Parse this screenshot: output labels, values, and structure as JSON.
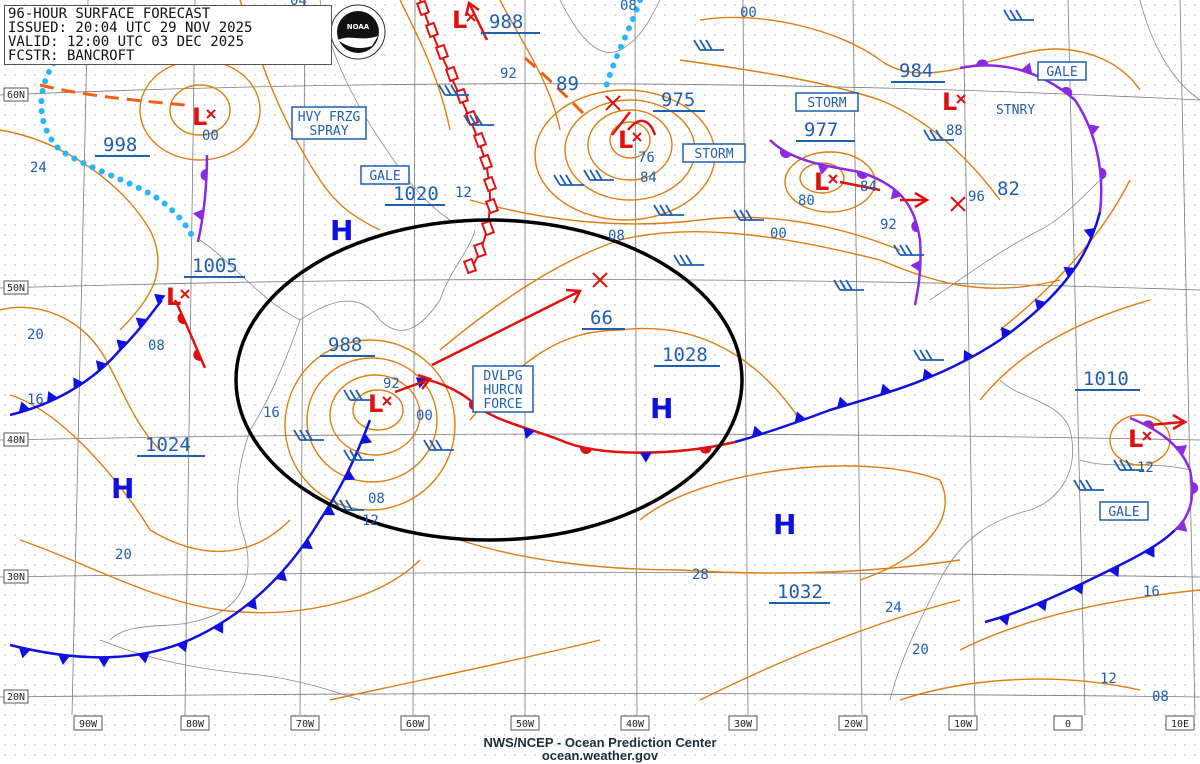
{
  "header": {
    "line1": "96-HOUR SURFACE FORECAST",
    "line2": "ISSUED: 20:04 UTC 29 NOV 2025",
    "line3": "VALID:  12:00 UTC 03 DEC 2025",
    "line4": "FCSTR: BANCROFT"
  },
  "logo_text": "NOAA",
  "credits": {
    "line1": "NWS/NCEP - Ocean Prediction Center",
    "line2": "ocean.weather.gov"
  },
  "longitude_labels": [
    "90W",
    "80W",
    "70W",
    "60W",
    "50W",
    "40W",
    "30W",
    "20W",
    "10W",
    "0",
    "10E"
  ],
  "latitude_labels": [
    "60N",
    "50N",
    "40N",
    "30N",
    "20N"
  ],
  "pressure_centers": [
    {
      "type": "H",
      "value": "1020"
    },
    {
      "type": "L",
      "value": "998"
    },
    {
      "type": "L",
      "value": "1005"
    },
    {
      "type": "L",
      "value": "988"
    },
    {
      "type": "X",
      "value": "66"
    },
    {
      "type": "H",
      "value": "1028"
    },
    {
      "type": "H",
      "value": "1032"
    },
    {
      "type": "H",
      "value": "1024"
    },
    {
      "type": "L",
      "value": "975"
    },
    {
      "type": "L",
      "value": "988"
    },
    {
      "type": "X",
      "value": "89"
    },
    {
      "type": "L",
      "value": "977"
    },
    {
      "type": "L",
      "value": "984"
    },
    {
      "type": "X",
      "value": "82"
    },
    {
      "type": "L",
      "value": "1010"
    }
  ],
  "warning_labels": [
    {
      "text": [
        "HVY FRZG",
        "SPRAY"
      ]
    },
    {
      "text": [
        "GALE"
      ]
    },
    {
      "text": [
        "STORM"
      ]
    },
    {
      "text": [
        "STORM"
      ]
    },
    {
      "text": [
        "GALE"
      ]
    },
    {
      "text": [
        "DVLPG",
        "HURCN",
        "FORCE"
      ]
    },
    {
      "text": [
        "GALE"
      ]
    }
  ],
  "front_labels": [
    "STNRY"
  ],
  "isobar_labels": [
    "00",
    "08",
    "92",
    "84",
    "80",
    "84",
    "92",
    "96",
    "88",
    "00",
    "08",
    "12",
    "24",
    "20",
    "16",
    "08",
    "16",
    "08",
    "12",
    "20",
    "28",
    "24",
    "20",
    "12",
    "08",
    "16",
    "12",
    "00",
    "92",
    "00",
    "76",
    "04"
  ],
  "colors": {
    "isobar": "#e07d10",
    "cold_front": "#1010e0",
    "warm_front": "#e01010",
    "occluded_front": "#8a2be2",
    "ice_edge": "#29b6f6",
    "label": "#1f5fb0",
    "annotation_ellipse": "#000000"
  }
}
